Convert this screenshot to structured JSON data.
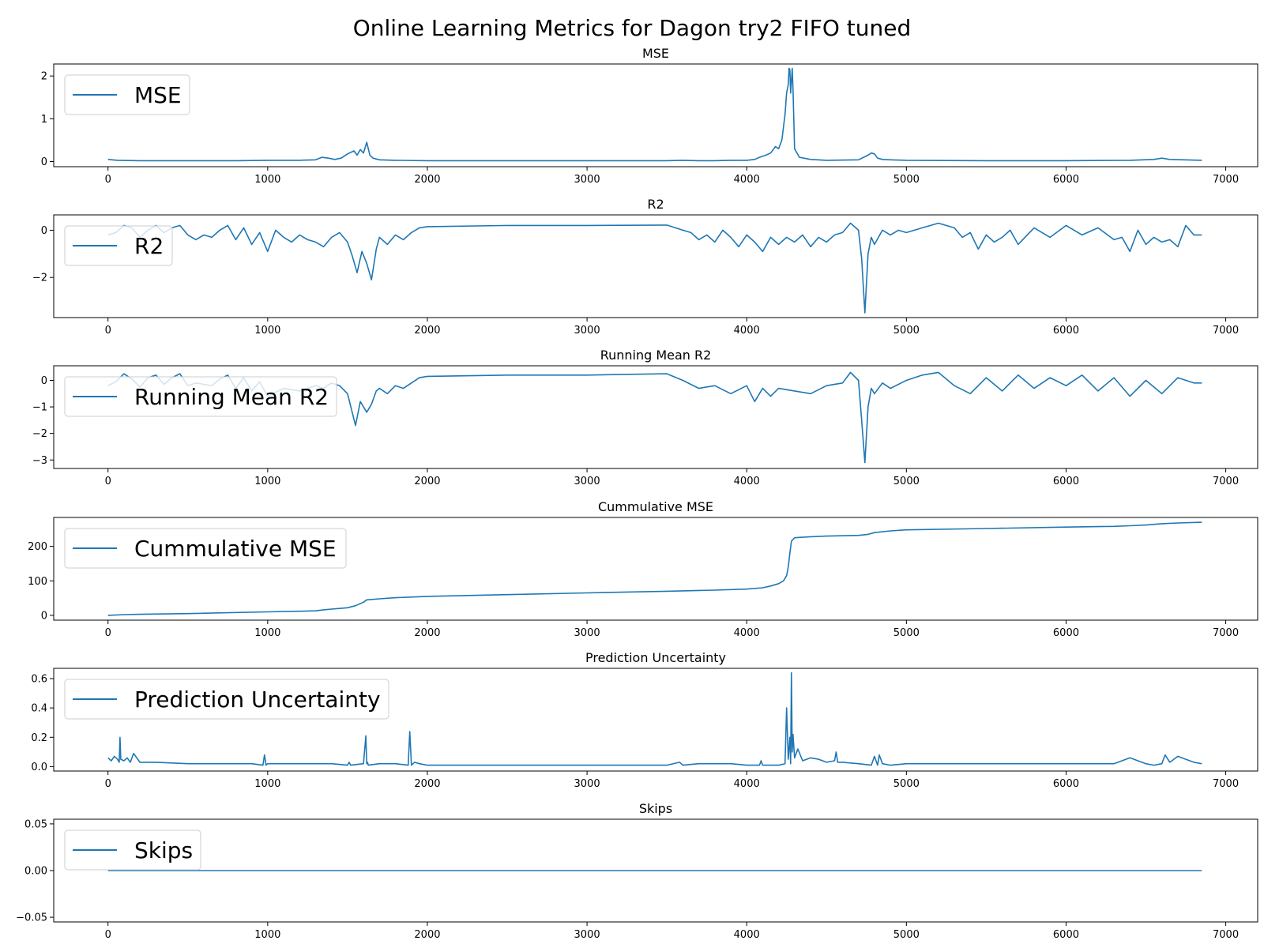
{
  "chart_data": {
    "title": "Online Learning Metrics for Dagon try2 FIFO tuned",
    "type": "line",
    "xlim": [
      -340,
      7200
    ],
    "xticks": [
      0,
      1000,
      2000,
      3000,
      4000,
      5000,
      6000,
      7000
    ],
    "color": "#1f77b4",
    "panels": [
      {
        "title": "MSE",
        "legend": "MSE",
        "ylim": [
          -0.12,
          2.28
        ],
        "yticks": [
          0,
          1,
          2
        ],
        "ytick_labels": [
          "0",
          "1",
          "2"
        ],
        "x": [
          0,
          60,
          200,
          400,
          600,
          800,
          1000,
          1200,
          1300,
          1340,
          1380,
          1420,
          1460,
          1500,
          1540,
          1560,
          1580,
          1600,
          1620,
          1640,
          1660,
          1700,
          1800,
          2000,
          2500,
          3000,
          3500,
          3600,
          3700,
          3800,
          3900,
          4000,
          4050,
          4080,
          4120,
          4150,
          4180,
          4200,
          4220,
          4240,
          4250,
          4260,
          4265,
          4270,
          4275,
          4285,
          4290,
          4300,
          4330,
          4400,
          4500,
          4700,
          4760,
          4780,
          4800,
          4820,
          4850,
          4900,
          5000,
          5500,
          6000,
          6400,
          6550,
          6600,
          6650,
          6850
        ],
        "y": [
          0.05,
          0.03,
          0.02,
          0.02,
          0.02,
          0.02,
          0.03,
          0.03,
          0.04,
          0.1,
          0.08,
          0.05,
          0.08,
          0.18,
          0.25,
          0.15,
          0.28,
          0.2,
          0.45,
          0.15,
          0.08,
          0.04,
          0.03,
          0.02,
          0.02,
          0.02,
          0.02,
          0.03,
          0.02,
          0.02,
          0.03,
          0.03,
          0.05,
          0.1,
          0.15,
          0.2,
          0.35,
          0.3,
          0.5,
          1.1,
          1.6,
          1.8,
          2.18,
          2.15,
          1.6,
          2.18,
          1.7,
          0.3,
          0.1,
          0.05,
          0.03,
          0.04,
          0.15,
          0.2,
          0.18,
          0.08,
          0.05,
          0.04,
          0.03,
          0.02,
          0.02,
          0.03,
          0.05,
          0.08,
          0.05,
          0.03
        ]
      },
      {
        "title": "R2",
        "legend": "R2",
        "ylim": [
          -3.7,
          0.65
        ],
        "yticks": [
          0,
          -2
        ],
        "ytick_labels": [
          "0",
          "−2"
        ],
        "x": [
          0,
          50,
          100,
          150,
          200,
          250,
          300,
          350,
          400,
          450,
          500,
          550,
          600,
          650,
          700,
          750,
          800,
          850,
          900,
          950,
          1000,
          1050,
          1100,
          1150,
          1200,
          1250,
          1300,
          1350,
          1400,
          1450,
          1500,
          1530,
          1560,
          1590,
          1620,
          1650,
          1680,
          1700,
          1750,
          1800,
          1850,
          1900,
          1950,
          2000,
          2500,
          3000,
          3500,
          3600,
          3650,
          3700,
          3750,
          3800,
          3850,
          3900,
          3950,
          4000,
          4050,
          4100,
          4150,
          4200,
          4250,
          4300,
          4350,
          4400,
          4450,
          4500,
          4550,
          4600,
          4650,
          4700,
          4720,
          4740,
          4760,
          4780,
          4800,
          4850,
          4900,
          4950,
          5000,
          5100,
          5200,
          5300,
          5350,
          5400,
          5450,
          5500,
          5550,
          5600,
          5650,
          5700,
          5800,
          5900,
          6000,
          6100,
          6200,
          6300,
          6350,
          6400,
          6450,
          6500,
          6550,
          6600,
          6650,
          6700,
          6750,
          6800,
          6850
        ],
        "y": [
          -0.2,
          -0.1,
          0.2,
          0.1,
          -0.3,
          0.0,
          0.2,
          -0.1,
          0.1,
          0.2,
          -0.2,
          -0.4,
          -0.2,
          -0.3,
          0.0,
          0.2,
          -0.4,
          0.1,
          -0.6,
          -0.1,
          -0.9,
          0.0,
          -0.3,
          -0.5,
          -0.2,
          -0.4,
          -0.5,
          -0.7,
          -0.3,
          -0.1,
          -0.5,
          -1.1,
          -1.8,
          -0.9,
          -1.4,
          -2.1,
          -0.8,
          -0.3,
          -0.6,
          -0.2,
          -0.4,
          -0.1,
          0.1,
          0.15,
          0.2,
          0.2,
          0.22,
          0.0,
          -0.1,
          -0.4,
          -0.2,
          -0.5,
          0.0,
          -0.3,
          -0.7,
          -0.2,
          -0.5,
          -0.9,
          -0.3,
          -0.6,
          -0.3,
          -0.5,
          -0.2,
          -0.7,
          -0.3,
          -0.5,
          -0.2,
          -0.1,
          0.3,
          0.0,
          -1.2,
          -3.5,
          -1.0,
          -0.3,
          -0.6,
          0.0,
          -0.2,
          0.0,
          -0.1,
          0.1,
          0.3,
          0.1,
          -0.3,
          -0.1,
          -0.8,
          -0.2,
          -0.5,
          -0.3,
          0.0,
          -0.6,
          0.1,
          -0.3,
          0.2,
          -0.2,
          0.1,
          -0.4,
          -0.3,
          -0.9,
          0.0,
          -0.6,
          -0.3,
          -0.5,
          -0.4,
          -0.7,
          0.2,
          -0.2,
          -0.2
        ]
      },
      {
        "title": "Running Mean R2",
        "legend": "Running Mean R2",
        "ylim": [
          -3.32,
          0.55
        ],
        "yticks": [
          0,
          -1,
          -2,
          -3
        ],
        "ytick_labels": [
          "0",
          "−1",
          "−2",
          "−3"
        ],
        "x": [
          0,
          50,
          100,
          150,
          200,
          250,
          300,
          350,
          400,
          450,
          500,
          550,
          600,
          650,
          700,
          750,
          800,
          850,
          900,
          950,
          1000,
          1100,
          1200,
          1300,
          1350,
          1400,
          1450,
          1500,
          1550,
          1580,
          1620,
          1650,
          1680,
          1700,
          1750,
          1800,
          1850,
          1900,
          1950,
          2000,
          2500,
          3000,
          3500,
          3600,
          3700,
          3800,
          3900,
          4000,
          4050,
          4100,
          4150,
          4200,
          4300,
          4400,
          4500,
          4600,
          4650,
          4700,
          4720,
          4740,
          4760,
          4780,
          4800,
          4850,
          4900,
          5000,
          5100,
          5200,
          5300,
          5400,
          5500,
          5600,
          5700,
          5800,
          5900,
          6000,
          6100,
          6200,
          6300,
          6400,
          6500,
          6600,
          6700,
          6800,
          6850
        ],
        "y": [
          -0.2,
          -0.05,
          0.25,
          0.05,
          -0.25,
          0.1,
          0.2,
          -0.15,
          0.1,
          0.25,
          -0.2,
          -0.1,
          -0.15,
          -0.2,
          0.05,
          0.2,
          -0.3,
          0.1,
          -0.4,
          -0.05,
          -0.6,
          -0.3,
          -0.4,
          -0.2,
          -0.3,
          -0.1,
          -0.2,
          -0.5,
          -1.7,
          -0.8,
          -1.2,
          -0.9,
          -0.4,
          -0.3,
          -0.5,
          -0.2,
          -0.3,
          -0.1,
          0.1,
          0.15,
          0.2,
          0.2,
          0.25,
          0.0,
          -0.3,
          -0.2,
          -0.5,
          -0.2,
          -0.8,
          -0.3,
          -0.6,
          -0.3,
          -0.4,
          -0.5,
          -0.2,
          -0.1,
          0.3,
          0.0,
          -1.5,
          -3.1,
          -1.0,
          -0.3,
          -0.5,
          -0.1,
          -0.3,
          0.0,
          0.2,
          0.3,
          -0.2,
          -0.5,
          0.1,
          -0.4,
          0.2,
          -0.3,
          0.1,
          -0.2,
          0.2,
          -0.4,
          0.1,
          -0.6,
          0.0,
          -0.5,
          0.1,
          -0.1,
          -0.1
        ]
      },
      {
        "title": "Cummulative MSE",
        "legend": "Cummulative MSE",
        "ylim": [
          -14,
          284
        ],
        "yticks": [
          0,
          100,
          200
        ],
        "ytick_labels": [
          "0",
          "100",
          "200"
        ],
        "x": [
          0,
          100,
          200,
          500,
          1000,
          1200,
          1300,
          1350,
          1400,
          1450,
          1500,
          1550,
          1600,
          1620,
          1700,
          1800,
          2000,
          2500,
          3000,
          3500,
          3800,
          4000,
          4100,
          4150,
          4200,
          4230,
          4250,
          4260,
          4270,
          4280,
          4300,
          4400,
          4500,
          4700,
          4760,
          4800,
          4900,
          5000,
          5500,
          6000,
          6300,
          6400,
          6500,
          6600,
          6700,
          6850
        ],
        "y": [
          0,
          2,
          3,
          5,
          10,
          12,
          13,
          16,
          18,
          20,
          22,
          28,
          38,
          45,
          48,
          51,
          55,
          60,
          65,
          70,
          73,
          76,
          80,
          85,
          92,
          100,
          115,
          140,
          180,
          215,
          225,
          228,
          230,
          232,
          235,
          240,
          245,
          248,
          252,
          256,
          258,
          260,
          262,
          266,
          268,
          270
        ]
      },
      {
        "title": "Prediction Uncertainty",
        "legend": "Prediction Uncertainty",
        "ylim": [
          -0.03,
          0.67
        ],
        "yticks": [
          0.0,
          0.2,
          0.4,
          0.6
        ],
        "ytick_labels": [
          "0.0",
          "0.2",
          "0.4",
          "0.6"
        ],
        "x": [
          0,
          20,
          40,
          60,
          70,
          75,
          80,
          100,
          120,
          140,
          160,
          200,
          300,
          500,
          700,
          900,
          970,
          980,
          990,
          1000,
          1200,
          1400,
          1500,
          1510,
          1520,
          1600,
          1615,
          1620,
          1625,
          1630,
          1700,
          1800,
          1880,
          1890,
          1900,
          1920,
          1950,
          2000,
          2500,
          3000,
          3500,
          3580,
          3600,
          3700,
          3800,
          3900,
          4000,
          4080,
          4090,
          4100,
          4200,
          4240,
          4250,
          4260,
          4270,
          4275,
          4280,
          4285,
          4290,
          4300,
          4320,
          4350,
          4400,
          4450,
          4500,
          4550,
          4560,
          4570,
          4600,
          4700,
          4780,
          4800,
          4820,
          4830,
          4850,
          4900,
          5000,
          5500,
          6000,
          6300,
          6400,
          6500,
          6550,
          6600,
          6620,
          6650,
          6700,
          6750,
          6800,
          6850
        ],
        "y": [
          0.06,
          0.04,
          0.07,
          0.05,
          0.03,
          0.2,
          0.05,
          0.04,
          0.06,
          0.03,
          0.09,
          0.03,
          0.03,
          0.02,
          0.02,
          0.02,
          0.01,
          0.08,
          0.01,
          0.02,
          0.02,
          0.02,
          0.01,
          0.03,
          0.01,
          0.02,
          0.21,
          0.02,
          0.03,
          0.01,
          0.02,
          0.02,
          0.01,
          0.24,
          0.01,
          0.03,
          0.02,
          0.01,
          0.01,
          0.01,
          0.01,
          0.03,
          0.01,
          0.02,
          0.02,
          0.02,
          0.01,
          0.01,
          0.04,
          0.01,
          0.01,
          0.02,
          0.4,
          0.05,
          0.2,
          0.02,
          0.64,
          0.1,
          0.22,
          0.06,
          0.12,
          0.04,
          0.06,
          0.05,
          0.03,
          0.04,
          0.1,
          0.03,
          0.03,
          0.02,
          0.01,
          0.07,
          0.01,
          0.08,
          0.02,
          0.01,
          0.02,
          0.02,
          0.02,
          0.02,
          0.06,
          0.02,
          0.01,
          0.02,
          0.08,
          0.03,
          0.07,
          0.05,
          0.03,
          0.02
        ]
      },
      {
        "title": "Skips",
        "legend": "Skips",
        "ylim": [
          -0.055,
          0.055
        ],
        "yticks": [
          0.05,
          0.0,
          -0.05
        ],
        "ytick_labels": [
          "0.05",
          "0.00",
          "−0.05"
        ],
        "x": [
          0,
          6850
        ],
        "y": [
          0,
          0
        ]
      }
    ]
  }
}
